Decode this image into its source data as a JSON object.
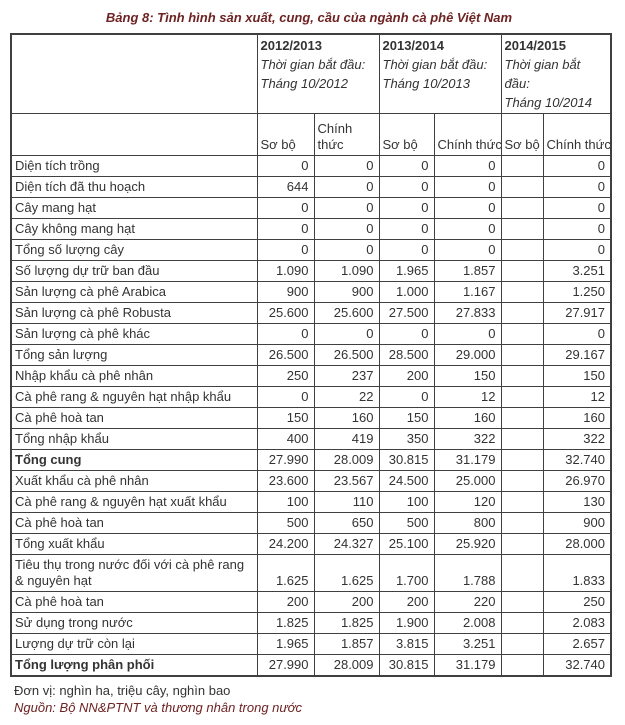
{
  "title": "Bảng 8: Tình hình sản xuất, cung, cầu của ngành cà phê Việt Nam",
  "colors": {
    "accent": "#6e2222",
    "body_text": "#333333",
    "table_border": "#404040"
  },
  "table": {
    "year_headers": [
      {
        "year": "2012/2013",
        "start_label": "Thời gian bắt đầu:",
        "start_month": "Tháng 10/2012"
      },
      {
        "year": "2013/2014",
        "start_label": "Thời gian bắt đầu:",
        "start_month": "Tháng 10/2013"
      },
      {
        "year": "2014/2015",
        "start_label": "Thời gian bắt đầu:",
        "start_month": "Tháng 10/2014"
      }
    ],
    "sub_headers": [
      "Sơ bộ",
      "Chính thức",
      "Sơ bộ",
      "Chính thức",
      "Sơ bộ",
      "Chính thức"
    ],
    "rows": [
      {
        "label": "Diện tích trồng",
        "bold": false,
        "values": [
          "0",
          "0",
          "0",
          "0",
          "",
          "0"
        ]
      },
      {
        "label": "Diện tích đã thu hoạch",
        "bold": false,
        "values": [
          "644",
          "0",
          "0",
          "0",
          "",
          "0"
        ]
      },
      {
        "label": "Cây mang hạt",
        "bold": false,
        "values": [
          "0",
          "0",
          "0",
          "0",
          "",
          "0"
        ]
      },
      {
        "label": "Cây không mang hạt",
        "bold": false,
        "values": [
          "0",
          "0",
          "0",
          "0",
          "",
          "0"
        ]
      },
      {
        "label": "Tổng số lượng cây",
        "bold": false,
        "values": [
          "0",
          "0",
          "0",
          "0",
          "",
          "0"
        ]
      },
      {
        "label": "Số lượng dự trữ ban đầu",
        "bold": false,
        "values": [
          "1.090",
          "1.090",
          "1.965",
          "1.857",
          "",
          "3.251"
        ]
      },
      {
        "label": "Sản lượng cà phê Arabica",
        "bold": false,
        "values": [
          "900",
          "900",
          "1.000",
          "1.167",
          "",
          "1.250"
        ]
      },
      {
        "label": "Sản lượng cà phê Robusta",
        "bold": false,
        "values": [
          "25.600",
          "25.600",
          "27.500",
          "27.833",
          "",
          "27.917"
        ]
      },
      {
        "label": "Sản lượng cà phê khác",
        "bold": false,
        "values": [
          "0",
          "0",
          "0",
          "0",
          "",
          "0"
        ]
      },
      {
        "label": "Tổng sản lượng",
        "bold": false,
        "values": [
          "26.500",
          "26.500",
          "28.500",
          "29.000",
          "",
          "29.167"
        ]
      },
      {
        "label": "Nhập khẩu cà phê nhân",
        "bold": false,
        "values": [
          "250",
          "237",
          "200",
          "150",
          "",
          "150"
        ]
      },
      {
        "label": "Cà phê rang & nguyên hạt nhập khẩu",
        "bold": false,
        "values": [
          "0",
          "22",
          "0",
          "12",
          "",
          "12"
        ]
      },
      {
        "label": "Cà phê hoà tan",
        "bold": false,
        "values": [
          "150",
          "160",
          "150",
          "160",
          "",
          "160"
        ]
      },
      {
        "label": "Tổng nhập khẩu",
        "bold": false,
        "values": [
          "400",
          "419",
          "350",
          "322",
          "",
          "322"
        ]
      },
      {
        "label": "Tổng cung",
        "bold": true,
        "values": [
          "27.990",
          "28.009",
          "30.815",
          "31.179",
          "",
          "32.740"
        ]
      },
      {
        "label": "Xuất khẩu cà phê nhân",
        "bold": false,
        "values": [
          "23.600",
          "23.567",
          "24.500",
          "25.000",
          "",
          "26.970"
        ]
      },
      {
        "label": "Cà phê rang & nguyên hạt xuất khẩu",
        "bold": false,
        "values": [
          "100",
          "110",
          "100",
          "120",
          "",
          "130"
        ]
      },
      {
        "label": "Cà phê hoà tan",
        "bold": false,
        "values": [
          "500",
          "650",
          "500",
          "800",
          "",
          "900"
        ]
      },
      {
        "label": "Tổng xuất khẩu",
        "bold": false,
        "values": [
          "24.200",
          "24.327",
          "25.100",
          "25.920",
          "",
          "28.000"
        ]
      },
      {
        "label": "Tiêu thụ trong nước đối với cà phê rang & nguyên hạt",
        "bold": false,
        "values": [
          "1.625",
          "1.625",
          "1.700",
          "1.788",
          "",
          "1.833"
        ]
      },
      {
        "label": "Cà phê hoà tan",
        "bold": false,
        "values": [
          "200",
          "200",
          "200",
          "220",
          "",
          "250"
        ]
      },
      {
        "label": "Sử dụng trong nước",
        "bold": false,
        "values": [
          "1.825",
          "1.825",
          "1.900",
          "2.008",
          "",
          "2.083"
        ]
      },
      {
        "label": "Lượng dự trữ còn lại",
        "bold": false,
        "values": [
          "1.965",
          "1.857",
          "3.815",
          "3.251",
          "",
          "2.657"
        ]
      },
      {
        "label": "Tổng lượng phân phối",
        "bold": true,
        "values": [
          "27.990",
          "28.009",
          "30.815",
          "31.179",
          "",
          "32.740"
        ]
      }
    ]
  },
  "footer": {
    "unit": "Đơn vị: nghìn ha, triệu cây, nghìn bao",
    "source": "Nguồn: Bộ NN&PTNT và thương nhân trong nước"
  }
}
